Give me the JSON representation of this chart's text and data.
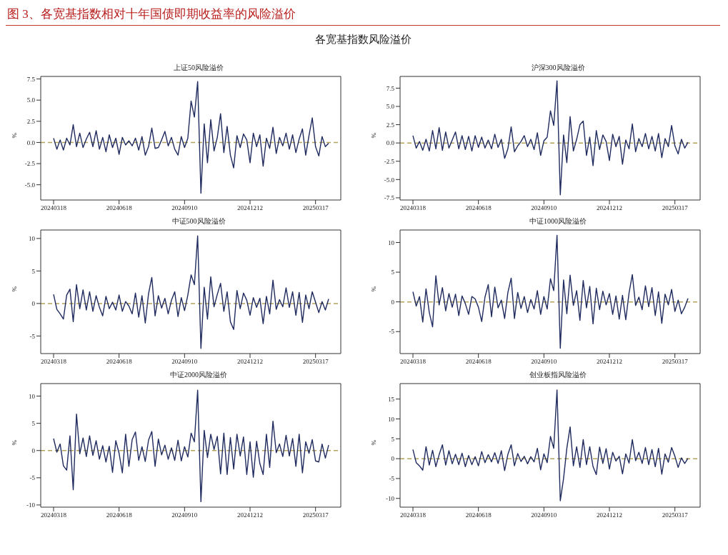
{
  "chart_data": [
    {
      "type": "other",
      "title": "图 3、各宽基指数相对十年国债即期收益率的风险溢价",
      "subtitle": "各宽基指数风险溢价"
    },
    {
      "type": "line",
      "title": "上证50风险溢价",
      "ylabel": "%",
      "categories": [
        "20240318",
        null,
        null,
        null,
        null,
        null,
        null,
        null,
        null,
        null,
        null,
        null,
        null,
        null,
        null,
        null,
        null,
        null,
        null,
        null,
        "20240618",
        null,
        null,
        null,
        null,
        null,
        null,
        null,
        null,
        null,
        null,
        null,
        null,
        null,
        null,
        null,
        null,
        null,
        null,
        null,
        "20240910",
        null,
        null,
        null,
        null,
        null,
        null,
        null,
        null,
        null,
        null,
        null,
        null,
        null,
        null,
        null,
        null,
        null,
        null,
        null,
        "20241212",
        null,
        null,
        null,
        null,
        null,
        null,
        null,
        null,
        null,
        null,
        null,
        null,
        null,
        null,
        null,
        null,
        null,
        null,
        null,
        "20250317",
        null,
        null,
        null,
        null
      ],
      "series": [
        {
          "color": "#1f2a5e",
          "values": [
            0.5,
            -0.8,
            0.3,
            -0.9,
            0.5,
            -0.3,
            2.1,
            -0.5,
            1.1,
            -0.6,
            0.4,
            1.2,
            -0.5,
            1.4,
            -0.8,
            0.6,
            -1.1,
            0.9,
            -0.6,
            0.5,
            -1.4,
            0.6,
            -0.3,
            0.2,
            -0.4,
            0.5,
            -0.9,
            0.7,
            -1.5,
            -0.5,
            1.7,
            -0.7,
            -0.6,
            0.3,
            1.3,
            -0.4,
            0.6,
            -0.8,
            -1.5,
            0.7,
            -0.6,
            0.5,
            4.9,
            3.0,
            7.2,
            -6.0,
            2.2,
            -2.4,
            2.7,
            -1.0,
            0.6,
            3.4,
            -1.2,
            1.9,
            -1.5,
            -3.0,
            0.8,
            -0.6,
            1.0,
            0.3,
            -2.4,
            1.1,
            -0.5,
            0.9,
            -2.8,
            0.5,
            -0.7,
            1.8,
            -1.3,
            0.6,
            -0.4,
            1.1,
            -0.8,
            0.9,
            -1.2,
            0.4,
            1.6,
            -1.5,
            0.8,
            2.9,
            -0.5,
            -1.6,
            0.7,
            -0.5,
            -0.1
          ]
        }
      ],
      "ylim": [
        -6.8,
        7.8
      ],
      "yticks": [
        {
          "value": -5,
          "label": "-5.0"
        },
        {
          "value": -2.5,
          "label": "-2.5"
        },
        {
          "value": 0,
          "label": "0.0"
        },
        {
          "value": 2.5,
          "label": "2.5"
        },
        {
          "value": 5,
          "label": "5.0"
        },
        {
          "value": 7.5,
          "label": "7.5"
        }
      ],
      "ref_lines": [
        {
          "axis": "y",
          "value": 0,
          "color": "#b5a35a",
          "line_style": "dashed"
        }
      ]
    },
    {
      "type": "line",
      "title": "沪深300风险溢价",
      "ylabel": "%",
      "categories": [
        "20240318",
        null,
        null,
        null,
        null,
        null,
        null,
        null,
        null,
        null,
        null,
        null,
        null,
        null,
        null,
        null,
        null,
        null,
        null,
        null,
        "20240618",
        null,
        null,
        null,
        null,
        null,
        null,
        null,
        null,
        null,
        null,
        null,
        null,
        null,
        null,
        null,
        null,
        null,
        null,
        null,
        "20240910",
        null,
        null,
        null,
        null,
        null,
        null,
        null,
        null,
        null,
        null,
        null,
        null,
        null,
        null,
        null,
        null,
        null,
        null,
        null,
        "20241212",
        null,
        null,
        null,
        null,
        null,
        null,
        null,
        null,
        null,
        null,
        null,
        null,
        null,
        null,
        null,
        null,
        null,
        null,
        null,
        "20250317",
        null,
        null,
        null,
        null
      ],
      "series": [
        {
          "color": "#1f2a5e",
          "values": [
            1.0,
            -0.7,
            0.2,
            -1.0,
            0.5,
            -1.1,
            1.7,
            -0.8,
            2.1,
            -1.0,
            1.5,
            -0.7,
            0.4,
            1.5,
            -0.8,
            1.0,
            -0.9,
            0.9,
            -1.1,
            1.0,
            -0.6,
            0.8,
            -0.7,
            0.4,
            -0.8,
            1.2,
            -0.6,
            0.5,
            -2.1,
            -0.8,
            2.2,
            -1.2,
            -0.4,
            0.2,
            1.0,
            -0.5,
            0.5,
            -0.9,
            1.4,
            -1.7,
            0.3,
            0.8,
            4.4,
            2.4,
            8.5,
            -7.1,
            1.1,
            -2.7,
            3.6,
            -1.1,
            0.5,
            2.5,
            3.0,
            -1.7,
            0.8,
            -3.1,
            1.7,
            -0.9,
            1.1,
            0.2,
            -2.4,
            1.2,
            -0.5,
            0.9,
            -2.9,
            0.4,
            -0.8,
            2.6,
            -1.2,
            0.6,
            -0.5,
            1.3,
            -0.8,
            0.9,
            -1.1,
            1.3,
            -2.0,
            0.6,
            -0.5,
            2.4,
            -0.4,
            -1.5,
            0.5,
            -0.7,
            0.1
          ]
        }
      ],
      "ylim": [
        -7.8,
        9.1
      ],
      "yticks": [
        {
          "value": -7.5,
          "label": "-7.5"
        },
        {
          "value": -5,
          "label": "-5.0"
        },
        {
          "value": -2.5,
          "label": "-2.5"
        },
        {
          "value": 0,
          "label": "0.0"
        },
        {
          "value": 2.5,
          "label": "2.5"
        },
        {
          "value": 5,
          "label": "5.0"
        },
        {
          "value": 7.5,
          "label": "7.5"
        }
      ],
      "ref_lines": [
        {
          "axis": "y",
          "value": 0,
          "color": "#b5a35a",
          "line_style": "dashed"
        }
      ]
    },
    {
      "type": "line",
      "title": "中证500风险溢价",
      "ylabel": "%",
      "categories": [
        "20240318",
        null,
        null,
        null,
        null,
        null,
        null,
        null,
        null,
        null,
        null,
        null,
        null,
        null,
        null,
        null,
        null,
        null,
        null,
        null,
        "20240618",
        null,
        null,
        null,
        null,
        null,
        null,
        null,
        null,
        null,
        null,
        null,
        null,
        null,
        null,
        null,
        null,
        null,
        null,
        null,
        "20240910",
        null,
        null,
        null,
        null,
        null,
        null,
        null,
        null,
        null,
        null,
        null,
        null,
        null,
        null,
        null,
        null,
        null,
        null,
        null,
        "20241212",
        null,
        null,
        null,
        null,
        null,
        null,
        null,
        null,
        null,
        null,
        null,
        null,
        null,
        null,
        null,
        null,
        null,
        null,
        null,
        "20250317",
        null,
        null,
        null,
        null
      ],
      "series": [
        {
          "color": "#1f2a5e",
          "values": [
            1.4,
            -0.9,
            -1.6,
            -2.4,
            1.3,
            2.2,
            -2.8,
            2.9,
            -0.8,
            2.1,
            -1.0,
            1.8,
            -1.2,
            1.2,
            -0.6,
            -1.9,
            1.1,
            -0.8,
            0.2,
            -1.0,
            1.3,
            -1.2,
            0.3,
            -0.4,
            -1.6,
            1.6,
            -2.1,
            1.2,
            -3.0,
            1.5,
            4.0,
            -1.9,
            1.2,
            -0.7,
            0.8,
            -1.6,
            0.5,
            1.8,
            -2.0,
            0.9,
            -1.1,
            1.3,
            4.4,
            2.9,
            10.4,
            -6.9,
            2.5,
            -2.4,
            4.1,
            -0.5,
            1.4,
            3.1,
            -1.2,
            1.8,
            -2.8,
            -4.0,
            2.0,
            -0.8,
            1.6,
            0.5,
            -1.8,
            0.9,
            -0.6,
            0.8,
            -3.1,
            1.1,
            -1.6,
            3.6,
            -0.9,
            0.6,
            -0.5,
            2.4,
            -0.6,
            1.8,
            -1.8,
            1.7,
            -2.9,
            1.3,
            -0.8,
            1.8,
            0.2,
            -1.4,
            0.3,
            -1.0,
            0.7
          ]
        }
      ],
      "ylim": [
        -7.7,
        11.3
      ],
      "yticks": [
        -5,
        0,
        5,
        10
      ],
      "ref_lines": [
        {
          "axis": "y",
          "value": 0,
          "color": "#b5a35a",
          "line_style": "dashed"
        }
      ]
    },
    {
      "type": "line",
      "title": "中证1000风险溢价",
      "ylabel": "%",
      "categories": [
        "20240318",
        null,
        null,
        null,
        null,
        null,
        null,
        null,
        null,
        null,
        null,
        null,
        null,
        null,
        null,
        null,
        null,
        null,
        null,
        null,
        "20240618",
        null,
        null,
        null,
        null,
        null,
        null,
        null,
        null,
        null,
        null,
        null,
        null,
        null,
        null,
        null,
        null,
        null,
        null,
        null,
        "20240910",
        null,
        null,
        null,
        null,
        null,
        null,
        null,
        null,
        null,
        null,
        null,
        null,
        null,
        null,
        null,
        null,
        null,
        null,
        null,
        "20241212",
        null,
        null,
        null,
        null,
        null,
        null,
        null,
        null,
        null,
        null,
        null,
        null,
        null,
        null,
        null,
        null,
        null,
        null,
        null,
        "20250317",
        null,
        null,
        null,
        null
      ],
      "series": [
        {
          "color": "#1f2a5e",
          "values": [
            1.7,
            -0.7,
            0.9,
            -3.4,
            2.2,
            -1.8,
            -4.2,
            4.4,
            -0.5,
            2.4,
            -1.5,
            1.4,
            -0.9,
            1.3,
            -2.3,
            1.0,
            -0.3,
            -2.1,
            0.9,
            0.5,
            -0.9,
            -3.3,
            0.8,
            2.9,
            -2.5,
            2.5,
            -1.0,
            0.3,
            -2.8,
            1.6,
            4.0,
            -2.8,
            1.6,
            -1.1,
            0.9,
            -1.8,
            0.4,
            -1.2,
            1.9,
            -2.1,
            0.9,
            -1.2,
            3.9,
            1.9,
            11.2,
            -7.8,
            3.7,
            -2.0,
            4.5,
            -0.6,
            1.9,
            -3.1,
            3.6,
            -1.0,
            2.6,
            -3.7,
            2.3,
            -1.3,
            1.8,
            -0.5,
            1.4,
            -2.1,
            1.0,
            -2.9,
            1.1,
            -3.0,
            1.5,
            4.6,
            -0.6,
            0.8,
            -1.3,
            2.7,
            -0.8,
            2.4,
            -2.3,
            1.7,
            -3.6,
            1.3,
            -0.5,
            2.1,
            -1.6,
            0.3,
            -2.0,
            -0.9,
            0.6
          ]
        }
      ],
      "ylim": [
        -8.7,
        12.1
      ],
      "yticks": [
        -5,
        0,
        5,
        10
      ],
      "ref_lines": [
        {
          "axis": "y",
          "value": 0,
          "color": "#b5a35a",
          "line_style": "dashed"
        }
      ]
    },
    {
      "type": "line",
      "title": "中证2000风险溢价",
      "ylabel": "%",
      "categories": [
        "20240318",
        null,
        null,
        null,
        null,
        null,
        null,
        null,
        null,
        null,
        null,
        null,
        null,
        null,
        null,
        null,
        null,
        null,
        null,
        null,
        "20240618",
        null,
        null,
        null,
        null,
        null,
        null,
        null,
        null,
        null,
        null,
        null,
        null,
        null,
        null,
        null,
        null,
        null,
        null,
        null,
        "20240910",
        null,
        null,
        null,
        null,
        null,
        null,
        null,
        null,
        null,
        null,
        null,
        null,
        null,
        null,
        null,
        null,
        null,
        null,
        null,
        "20241212",
        null,
        null,
        null,
        null,
        null,
        null,
        null,
        null,
        null,
        null,
        null,
        null,
        null,
        null,
        null,
        null,
        null,
        null,
        null,
        "20250317",
        null,
        null,
        null,
        null
      ],
      "series": [
        {
          "color": "#1f2a5e",
          "values": [
            2.2,
            -0.3,
            1.2,
            -2.8,
            -3.6,
            2.7,
            -7.2,
            6.7,
            -0.6,
            2.3,
            -1.1,
            2.7,
            -0.9,
            1.8,
            -1.6,
            0.9,
            -2.1,
            0.8,
            -4.0,
            1.8,
            -0.5,
            -4.1,
            3.0,
            -2.9,
            2.0,
            3.4,
            -1.8,
            0.7,
            -2.0,
            1.9,
            3.5,
            -2.9,
            2.1,
            -0.8,
            1.0,
            -1.6,
            0.5,
            -1.8,
            1.9,
            -1.9,
            0.7,
            -1.2,
            3.2,
            1.6,
            11.1,
            -9.4,
            3.7,
            -1.3,
            3.0,
            0.2,
            2.6,
            -4.3,
            3.2,
            -4.4,
            2.4,
            -3.4,
            3.0,
            -1.0,
            2.5,
            -4.4,
            1.6,
            -4.9,
            1.7,
            -2.4,
            -4.4,
            3.0,
            -3.1,
            5.4,
            -0.4,
            1.2,
            -1.1,
            2.8,
            -1.0,
            2.2,
            -2.9,
            3.0,
            -4.1,
            1.6,
            -0.5,
            2.0,
            -1.9,
            -2.1,
            1.2,
            -1.4,
            1.0
          ]
        }
      ],
      "ylim": [
        -10.4,
        12.3
      ],
      "yticks": [
        -10,
        -5,
        0,
        5,
        10
      ],
      "ref_lines": [
        {
          "axis": "y",
          "value": 0,
          "color": "#b5a35a",
          "line_style": "dashed"
        }
      ]
    },
    {
      "type": "line",
      "title": "创业板指风险溢价",
      "ylabel": "%",
      "categories": [
        "20240318",
        null,
        null,
        null,
        null,
        null,
        null,
        null,
        null,
        null,
        null,
        null,
        null,
        null,
        null,
        null,
        null,
        null,
        null,
        null,
        "20240618",
        null,
        null,
        null,
        null,
        null,
        null,
        null,
        null,
        null,
        null,
        null,
        null,
        null,
        null,
        null,
        null,
        null,
        null,
        null,
        "20240910",
        null,
        null,
        null,
        null,
        null,
        null,
        null,
        null,
        null,
        null,
        null,
        null,
        null,
        null,
        null,
        null,
        null,
        null,
        null,
        "20241212",
        null,
        null,
        null,
        null,
        null,
        null,
        null,
        null,
        null,
        null,
        null,
        null,
        null,
        null,
        null,
        null,
        null,
        null,
        null,
        "20250317",
        null,
        null,
        null,
        null
      ],
      "series": [
        {
          "color": "#1f2a5e",
          "values": [
            2.3,
            -1.0,
            -1.8,
            -2.9,
            3.0,
            -1.6,
            2.1,
            -2.0,
            1.0,
            3.5,
            -1.6,
            2.0,
            -1.3,
            1.1,
            -1.5,
            1.4,
            -2.0,
            0.8,
            -1.5,
            0.5,
            -1.8,
            1.8,
            -1.0,
            1.0,
            -0.8,
            1.5,
            -1.2,
            2.0,
            -3.0,
            1.1,
            3.5,
            -1.8,
            1.3,
            -0.7,
            0.6,
            -1.3,
            0.5,
            -0.8,
            2.6,
            -2.8,
            1.2,
            -1.0,
            5.6,
            2.6,
            17.3,
            -10.6,
            -5.0,
            2.6,
            8.0,
            -1.8,
            3.0,
            -2.2,
            4.8,
            -1.5,
            3.0,
            -2.0,
            -4.0,
            2.9,
            -1.2,
            2.5,
            -2.6,
            1.6,
            -0.6,
            0.6,
            -3.8,
            1.2,
            -1.1,
            4.8,
            -0.5,
            1.6,
            -1.2,
            2.8,
            -1.5,
            2.3,
            -2.0,
            2.6,
            -3.9,
            1.2,
            -0.9,
            2.8,
            0.6,
            -2.2,
            0.2,
            -1.2,
            0.1
          ]
        }
      ],
      "ylim": [
        -12.2,
        18.9
      ],
      "yticks": [
        -10,
        -5,
        0,
        5,
        10,
        15
      ],
      "ref_lines": [
        {
          "axis": "y",
          "value": 0,
          "color": "#b5a35a",
          "line_style": "dashed"
        }
      ]
    }
  ]
}
